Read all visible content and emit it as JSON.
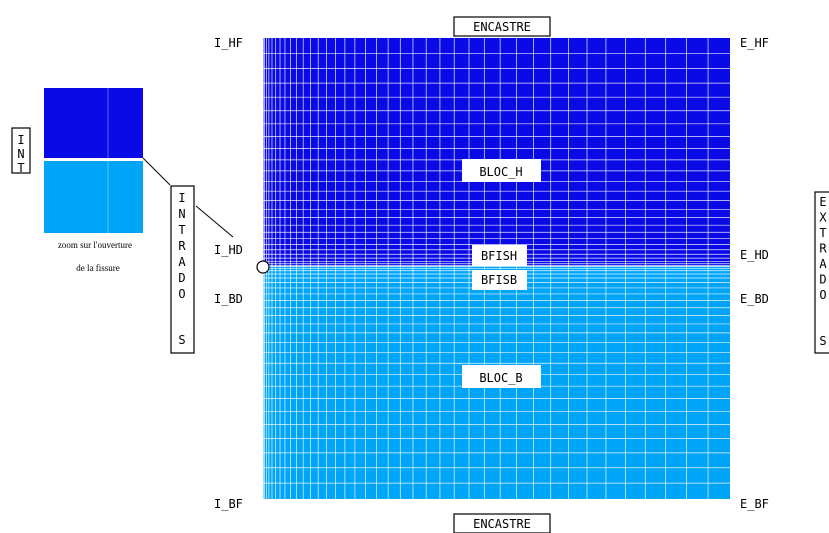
{
  "labels": {
    "encastre_top": "ENCASTRE",
    "encastre_bottom": "ENCASTRE",
    "i_hf": "I_HF",
    "e_hf": "E_HF",
    "i_hd": "I_HD",
    "e_hd": "E_HD",
    "i_bd": "I_BD",
    "e_bd": "E_BD",
    "i_bf": "I_BF",
    "e_bf": "E_BF",
    "bloc_h": "BLOC_H",
    "bfish": "BFISH",
    "bfisb": "BFISB",
    "bloc_b": "BLOC_B"
  },
  "vertical_words": {
    "int": [
      "I",
      "N",
      "T"
    ],
    "intrados": [
      "I",
      "N",
      "T",
      "R",
      "A",
      "D",
      "O",
      "S"
    ],
    "extrados": [
      "E",
      "X",
      "T",
      "R",
      "A",
      "D",
      "O",
      "S"
    ]
  },
  "zoom_caption": {
    "line1": "zoom sur l'ouverture",
    "line2": "de la fissure"
  },
  "colors": {
    "upper_block": "#0a0ae6",
    "lower_block": "#00a5f7",
    "grid_line": "#ffffff"
  }
}
